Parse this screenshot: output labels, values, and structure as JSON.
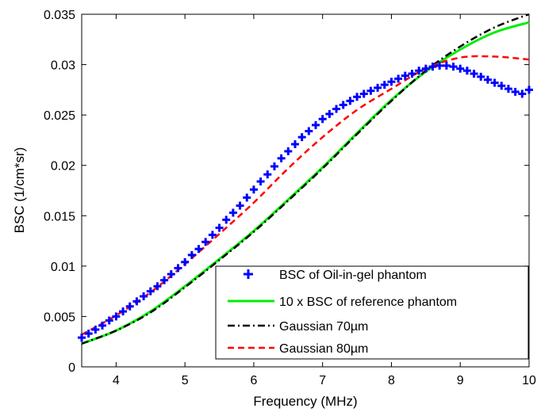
{
  "chart_data": {
    "type": "line",
    "xlabel": "Frequency (MHz)",
    "ylabel": "BSC (1/cm*sr)",
    "xlim": [
      3.5,
      10
    ],
    "ylim": [
      0,
      0.035
    ],
    "x_ticks": [
      "4",
      "5",
      "6",
      "7",
      "8",
      "9",
      "10"
    ],
    "y_ticks": [
      "0",
      "0.005",
      "0.01",
      "0.015",
      "0.02",
      "0.025",
      "0.03",
      "0.035"
    ],
    "legend_position": "bottom-right",
    "grid": false,
    "series": [
      {
        "name": "BSC of Oil-in-gel phantom",
        "style": "markers",
        "marker": "plus",
        "color": "#0000ff",
        "x": [
          3.5,
          3.6,
          3.7,
          3.8,
          3.9,
          4.0,
          4.1,
          4.2,
          4.3,
          4.4,
          4.5,
          4.6,
          4.7,
          4.8,
          4.9,
          5.0,
          5.1,
          5.2,
          5.3,
          5.4,
          5.5,
          5.6,
          5.7,
          5.8,
          5.9,
          6.0,
          6.1,
          6.2,
          6.3,
          6.4,
          6.5,
          6.6,
          6.7,
          6.8,
          6.9,
          7.0,
          7.1,
          7.2,
          7.3,
          7.4,
          7.5,
          7.6,
          7.7,
          7.8,
          7.9,
          8.0,
          8.1,
          8.2,
          8.3,
          8.4,
          8.5,
          8.6,
          8.7,
          8.8,
          8.9,
          9.0,
          9.1,
          9.2,
          9.3,
          9.4,
          9.5,
          9.6,
          9.7,
          9.8,
          9.9,
          10.0
        ],
        "y": [
          0.0029,
          0.0033,
          0.0037,
          0.0041,
          0.0046,
          0.005,
          0.0055,
          0.006,
          0.0065,
          0.007,
          0.0075,
          0.008,
          0.0086,
          0.0092,
          0.0098,
          0.0104,
          0.0111,
          0.0117,
          0.0124,
          0.0131,
          0.0138,
          0.0146,
          0.0153,
          0.016,
          0.0168,
          0.0176,
          0.0184,
          0.0191,
          0.0199,
          0.0207,
          0.0214,
          0.0221,
          0.0228,
          0.0234,
          0.024,
          0.0246,
          0.0251,
          0.0256,
          0.026,
          0.0264,
          0.0268,
          0.0271,
          0.0274,
          0.0277,
          0.028,
          0.0283,
          0.0286,
          0.0289,
          0.0291,
          0.0294,
          0.0296,
          0.0298,
          0.0299,
          0.0299,
          0.0298,
          0.0296,
          0.0294,
          0.0291,
          0.0288,
          0.0285,
          0.0282,
          0.0279,
          0.0276,
          0.0273,
          0.0271,
          0.0275
        ]
      },
      {
        "name": "10 x BSC of reference phantom",
        "style": "solid",
        "color": "#00ee00",
        "x": [
          3.5,
          4.0,
          4.5,
          5.0,
          5.5,
          6.0,
          6.5,
          7.0,
          7.5,
          8.0,
          8.5,
          9.0,
          9.5,
          10.0
        ],
        "y": [
          0.0023,
          0.0036,
          0.0055,
          0.008,
          0.0107,
          0.0135,
          0.0166,
          0.0198,
          0.0232,
          0.0265,
          0.0293,
          0.0315,
          0.0332,
          0.0342
        ]
      },
      {
        "name": "Gaussian 70µm",
        "style": "dashdot",
        "color": "#000000",
        "x": [
          3.5,
          4.0,
          4.5,
          5.0,
          5.5,
          6.0,
          6.5,
          7.0,
          7.5,
          8.0,
          8.5,
          9.0,
          9.5,
          10.0
        ],
        "y": [
          0.0023,
          0.0036,
          0.0054,
          0.0079,
          0.0106,
          0.0134,
          0.0165,
          0.0197,
          0.0231,
          0.0264,
          0.0294,
          0.0318,
          0.0337,
          0.035
        ]
      },
      {
        "name": "Gaussian 80µm",
        "style": "dashed",
        "color": "#ff0000",
        "x": [
          3.5,
          4.0,
          4.5,
          5.0,
          5.5,
          6.0,
          6.5,
          7.0,
          7.5,
          8.0,
          8.5,
          9.0,
          9.5,
          10.0
        ],
        "y": [
          0.0032,
          0.0051,
          0.0074,
          0.0102,
          0.0132,
          0.0163,
          0.0197,
          0.0228,
          0.0255,
          0.0276,
          0.0296,
          0.0307,
          0.0308,
          0.0305
        ]
      }
    ]
  }
}
